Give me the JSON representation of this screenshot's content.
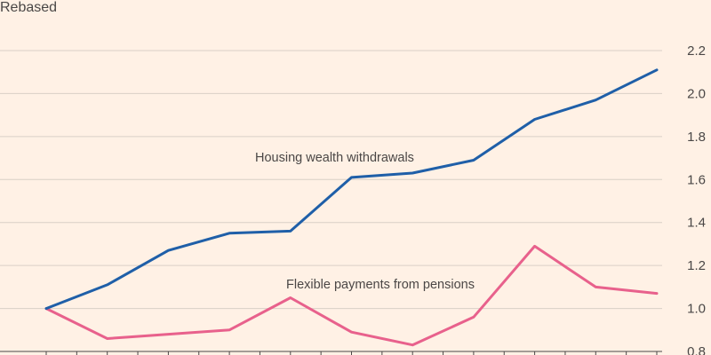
{
  "chart_data": {
    "type": "line",
    "ylabel": "Rebased",
    "ylim": [
      0.8,
      2.2
    ],
    "yticks": [
      "0.8",
      "1.0",
      "1.2",
      "1.4",
      "1.6",
      "1.8",
      "2.0",
      "2.2"
    ],
    "x": [
      0,
      1,
      2,
      3,
      4,
      5,
      6,
      7,
      8,
      9,
      10
    ],
    "series": [
      {
        "name": "Housing wealth withdrawals",
        "color": "#1f5fa8",
        "values": [
          1.0,
          1.11,
          1.27,
          1.35,
          1.36,
          1.61,
          1.63,
          1.69,
          1.88,
          1.97,
          2.11
        ]
      },
      {
        "name": "Flexible payments from pensions",
        "color": "#e8618c",
        "values": [
          1.0,
          0.86,
          0.88,
          0.9,
          1.05,
          0.89,
          0.83,
          0.96,
          1.29,
          1.1,
          1.07
        ]
      }
    ],
    "grid": true
  }
}
